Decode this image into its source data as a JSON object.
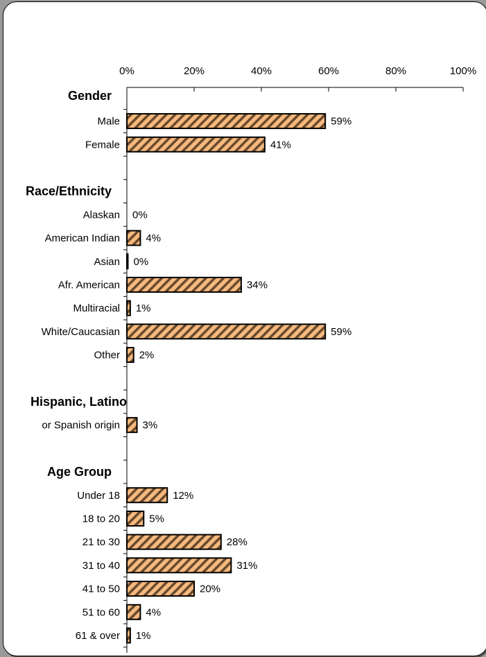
{
  "chart_data": {
    "type": "bar",
    "orientation": "horizontal",
    "x_ticks": [
      "0%",
      "20%",
      "40%",
      "60%",
      "80%",
      "100%"
    ],
    "xlim": [
      0,
      100
    ],
    "grid": false,
    "bar_color": "#f6b97e",
    "bar_pattern": "diagonal-hatch",
    "groups": [
      {
        "label": "Gender",
        "items": [
          {
            "label": "Male",
            "value": 59,
            "value_label": "59%"
          },
          {
            "label": "Female",
            "value": 41,
            "value_label": "41%"
          }
        ]
      },
      {
        "label": "Race/Ethnicity",
        "items": [
          {
            "label": "Alaskan",
            "value": 0,
            "value_label": "0%"
          },
          {
            "label": "American Indian",
            "value": 4,
            "value_label": "4%"
          },
          {
            "label": "Asian",
            "value": 0.3,
            "value_label": "0%"
          },
          {
            "label": "Afr. American",
            "value": 34,
            "value_label": "34%"
          },
          {
            "label": "Multiracial",
            "value": 1,
            "value_label": "1%"
          },
          {
            "label": "White/Caucasian",
            "value": 59,
            "value_label": "59%"
          },
          {
            "label": "Other",
            "value": 2,
            "value_label": "2%"
          }
        ]
      },
      {
        "label": "Hispanic, Latino",
        "items": [
          {
            "label": "or Spanish origin",
            "value": 3,
            "value_label": "3%"
          }
        ]
      },
      {
        "label": "Age Group",
        "items": [
          {
            "label": "Under 18",
            "value": 12,
            "value_label": "12%"
          },
          {
            "label": "18 to 20",
            "value": 5,
            "value_label": "5%"
          },
          {
            "label": "21 to 30",
            "value": 28,
            "value_label": "28%"
          },
          {
            "label": "31 to 40",
            "value": 31,
            "value_label": "31%"
          },
          {
            "label": "41 to 50",
            "value": 20,
            "value_label": "20%"
          },
          {
            "label": "51 to 60",
            "value": 4,
            "value_label": "4%"
          },
          {
            "label": "61 & over",
            "value": 1,
            "value_label": "1%"
          }
        ]
      }
    ]
  }
}
